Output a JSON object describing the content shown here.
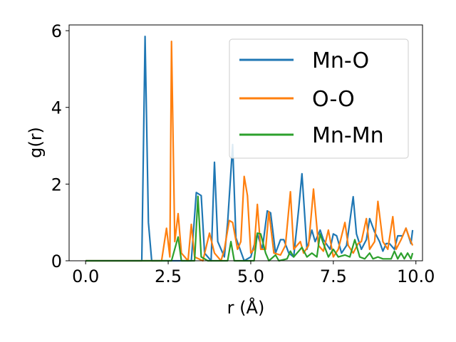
{
  "chart_data": {
    "type": "line",
    "xlabel": "r (Å)",
    "ylabel": "g(r)",
    "xlim": [
      -0.5,
      10.2
    ],
    "ylim": [
      0,
      6.15
    ],
    "xticks": [
      0.0,
      2.5,
      5.0,
      7.5,
      10.0
    ],
    "xtick_labels": [
      "0.0",
      "2.5",
      "5.0",
      "7.5",
      "10.0"
    ],
    "yticks": [
      0,
      2,
      4,
      6
    ],
    "ytick_labels": [
      "0",
      "2",
      "4",
      "6"
    ],
    "grid": false,
    "legend_position": "top-right",
    "series": [
      {
        "name": "Mn-O",
        "color": "#1f77b4",
        "points": [
          [
            0.0,
            0
          ],
          [
            1.7,
            0
          ],
          [
            1.8,
            5.85
          ],
          [
            1.9,
            1.0
          ],
          [
            2.0,
            0
          ],
          [
            3.2,
            0
          ],
          [
            3.35,
            1.78
          ],
          [
            3.5,
            1.7
          ],
          [
            3.6,
            0.2
          ],
          [
            3.8,
            0
          ],
          [
            3.9,
            2.57
          ],
          [
            4.0,
            0.5
          ],
          [
            4.2,
            0.1
          ],
          [
            4.3,
            1.0
          ],
          [
            4.45,
            3.03
          ],
          [
            4.55,
            0.6
          ],
          [
            4.8,
            0
          ],
          [
            5.0,
            0.1
          ],
          [
            5.2,
            0.7
          ],
          [
            5.35,
            0.3
          ],
          [
            5.5,
            1.3
          ],
          [
            5.6,
            1.25
          ],
          [
            5.75,
            0.2
          ],
          [
            5.9,
            0.55
          ],
          [
            6.0,
            0.55
          ],
          [
            6.15,
            0.2
          ],
          [
            6.3,
            0.1
          ],
          [
            6.45,
            1.35
          ],
          [
            6.55,
            2.27
          ],
          [
            6.7,
            0.3
          ],
          [
            6.85,
            0.8
          ],
          [
            6.95,
            0.5
          ],
          [
            7.1,
            0.8
          ],
          [
            7.2,
            0.55
          ],
          [
            7.4,
            0.3
          ],
          [
            7.5,
            0.7
          ],
          [
            7.6,
            0.65
          ],
          [
            7.75,
            0.2
          ],
          [
            7.9,
            0.4
          ],
          [
            8.1,
            1.67
          ],
          [
            8.2,
            0.7
          ],
          [
            8.35,
            0.3
          ],
          [
            8.5,
            0.55
          ],
          [
            8.6,
            1.1
          ],
          [
            8.75,
            0.75
          ],
          [
            8.9,
            0.5
          ],
          [
            9.0,
            0.25
          ],
          [
            9.1,
            0.45
          ],
          [
            9.2,
            0.45
          ],
          [
            9.35,
            0.3
          ],
          [
            9.45,
            0.65
          ],
          [
            9.6,
            0.65
          ],
          [
            9.7,
            0.85
          ],
          [
            9.85,
            0.45
          ],
          [
            9.9,
            0.8
          ]
        ]
      },
      {
        "name": "O-O",
        "color": "#ff7f0e",
        "points": [
          [
            0.0,
            0
          ],
          [
            2.3,
            0
          ],
          [
            2.45,
            0.85
          ],
          [
            2.55,
            0.1
          ],
          [
            2.6,
            5.72
          ],
          [
            2.7,
            0.5
          ],
          [
            2.8,
            1.23
          ],
          [
            2.9,
            0.2
          ],
          [
            3.1,
            0
          ],
          [
            3.2,
            0.95
          ],
          [
            3.3,
            0.1
          ],
          [
            3.55,
            0
          ],
          [
            3.75,
            0.72
          ],
          [
            3.9,
            0.2
          ],
          [
            4.1,
            0
          ],
          [
            4.2,
            0.3
          ],
          [
            4.35,
            1.05
          ],
          [
            4.45,
            1.0
          ],
          [
            4.6,
            0.3
          ],
          [
            4.7,
            0.5
          ],
          [
            4.8,
            2.2
          ],
          [
            4.9,
            1.7
          ],
          [
            5.0,
            0.2
          ],
          [
            5.1,
            0.3
          ],
          [
            5.2,
            1.47
          ],
          [
            5.3,
            0.3
          ],
          [
            5.45,
            0.3
          ],
          [
            5.55,
            1.28
          ],
          [
            5.7,
            0.2
          ],
          [
            5.9,
            0.15
          ],
          [
            6.05,
            0.4
          ],
          [
            6.2,
            1.8
          ],
          [
            6.3,
            0.3
          ],
          [
            6.5,
            0.5
          ],
          [
            6.6,
            0.2
          ],
          [
            6.75,
            0.4
          ],
          [
            6.9,
            1.87
          ],
          [
            7.05,
            0.4
          ],
          [
            7.2,
            0.25
          ],
          [
            7.35,
            0.8
          ],
          [
            7.5,
            0.1
          ],
          [
            7.65,
            0.3
          ],
          [
            7.85,
            1.0
          ],
          [
            7.95,
            0.4
          ],
          [
            8.1,
            0.2
          ],
          [
            8.25,
            0.45
          ],
          [
            8.35,
            0.5
          ],
          [
            8.5,
            1.1
          ],
          [
            8.6,
            0.3
          ],
          [
            8.75,
            0.5
          ],
          [
            8.85,
            1.55
          ],
          [
            9.0,
            0.5
          ],
          [
            9.15,
            0.3
          ],
          [
            9.3,
            1.15
          ],
          [
            9.4,
            0.3
          ],
          [
            9.55,
            0.55
          ],
          [
            9.7,
            0.85
          ],
          [
            9.8,
            0.6
          ],
          [
            9.9,
            0.4
          ]
        ]
      },
      {
        "name": "Mn-Mn",
        "color": "#2ca02c",
        "points": [
          [
            0.0,
            0
          ],
          [
            2.6,
            0
          ],
          [
            2.8,
            0.62
          ],
          [
            2.9,
            0
          ],
          [
            3.3,
            0
          ],
          [
            3.4,
            1.68
          ],
          [
            3.5,
            0.1
          ],
          [
            3.7,
            0
          ],
          [
            4.3,
            0
          ],
          [
            4.4,
            0.5
          ],
          [
            4.5,
            0
          ],
          [
            5.1,
            0
          ],
          [
            5.2,
            0.72
          ],
          [
            5.3,
            0.7
          ],
          [
            5.45,
            0.2
          ],
          [
            5.55,
            0
          ],
          [
            5.75,
            0.15
          ],
          [
            5.85,
            0
          ],
          [
            6.1,
            0.05
          ],
          [
            6.2,
            0.25
          ],
          [
            6.3,
            0.1
          ],
          [
            6.55,
            0.35
          ],
          [
            6.7,
            0.1
          ],
          [
            6.85,
            0.2
          ],
          [
            7.0,
            0.1
          ],
          [
            7.1,
            0.7
          ],
          [
            7.2,
            0.45
          ],
          [
            7.35,
            0.1
          ],
          [
            7.5,
            0.3
          ],
          [
            7.65,
            0.1
          ],
          [
            7.85,
            0.15
          ],
          [
            8.0,
            0.1
          ],
          [
            8.15,
            0.55
          ],
          [
            8.3,
            0.1
          ],
          [
            8.45,
            0.05
          ],
          [
            8.6,
            0.2
          ],
          [
            8.7,
            0.05
          ],
          [
            8.85,
            0.1
          ],
          [
            9.0,
            0.05
          ],
          [
            9.25,
            0.05
          ],
          [
            9.35,
            0.25
          ],
          [
            9.45,
            0.05
          ],
          [
            9.55,
            0.2
          ],
          [
            9.65,
            0.05
          ],
          [
            9.75,
            0.2
          ],
          [
            9.85,
            0.05
          ],
          [
            9.9,
            0.2
          ]
        ]
      }
    ]
  }
}
